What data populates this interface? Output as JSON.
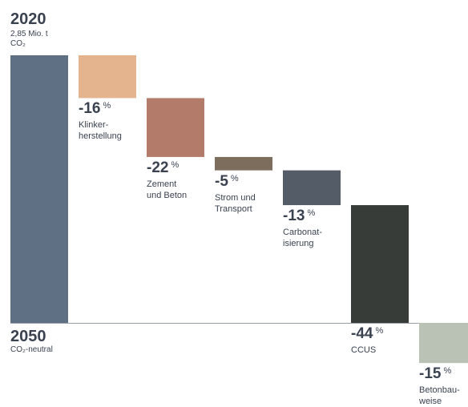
{
  "chart_data": {
    "type": "bar",
    "subtype": "waterfall",
    "start": {
      "year": "2020",
      "label_line1": "2,85 Mio. t",
      "label_line2": "CO₂",
      "value_pct": 100,
      "color": "#5f6f84"
    },
    "end": {
      "year": "2050",
      "label": "CO₂-neutral",
      "value_pct": 0
    },
    "steps": [
      {
        "pct": "-16",
        "unit": "%",
        "label": "Klinker-\nherstellung",
        "delta": -16,
        "color": "#e4b48f"
      },
      {
        "pct": "-22",
        "unit": "%",
        "label": "Zement\nund Beton",
        "delta": -22,
        "color": "#b37c6a"
      },
      {
        "pct": "-5",
        "unit": "%",
        "label": "Strom und\nTransport",
        "delta": -5,
        "color": "#7c6d5d"
      },
      {
        "pct": "-13",
        "unit": "%",
        "label": "Carbonat-\nisierung",
        "delta": -13,
        "color": "#545c68"
      },
      {
        "pct": "-44",
        "unit": "%",
        "label": "CCUS",
        "delta": -44,
        "color": "#373c38"
      },
      {
        "pct": "-15",
        "unit": "%",
        "label": "Betonbau-\nweise",
        "delta": -15,
        "color": "#b9c2b4"
      }
    ],
    "baseline_color": "#9aa0a8",
    "ylim": [
      -15,
      100
    ]
  }
}
